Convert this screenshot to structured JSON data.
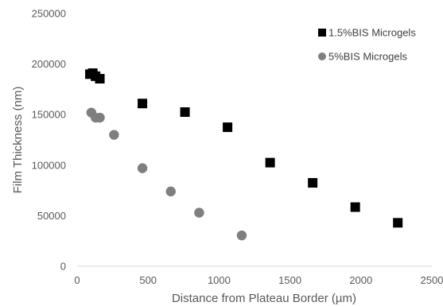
{
  "chart_data": {
    "type": "scatter",
    "xlabel": "Distance from Plateau Border (µm)",
    "ylabel": "Film Thickness (nm)",
    "xlim": [
      0,
      2500
    ],
    "ylim": [
      0,
      250000
    ],
    "x_ticks": [
      0,
      500,
      1000,
      1500,
      2000,
      2500
    ],
    "y_ticks": [
      0,
      50000,
      100000,
      150000,
      200000,
      250000
    ],
    "grid": false,
    "legend_position": "top-right",
    "series": [
      {
        "name": "1.5%BIS Microgels",
        "marker": "square",
        "color": "#000000",
        "x": [
          90,
          110,
          130,
          160,
          460,
          760,
          1060,
          1360,
          1660,
          1960,
          2260
        ],
        "y": [
          190000,
          191000,
          188000,
          185500,
          161000,
          152500,
          137500,
          102500,
          82500,
          58500,
          43000
        ]
      },
      {
        "name": "5%BIS Microgels",
        "marker": "circle",
        "color": "#7f7f7f",
        "x": [
          100,
          130,
          160,
          260,
          460,
          660,
          860,
          1160
        ],
        "y": [
          152000,
          147000,
          147000,
          130000,
          97000,
          74000,
          53000,
          30500
        ]
      }
    ]
  }
}
